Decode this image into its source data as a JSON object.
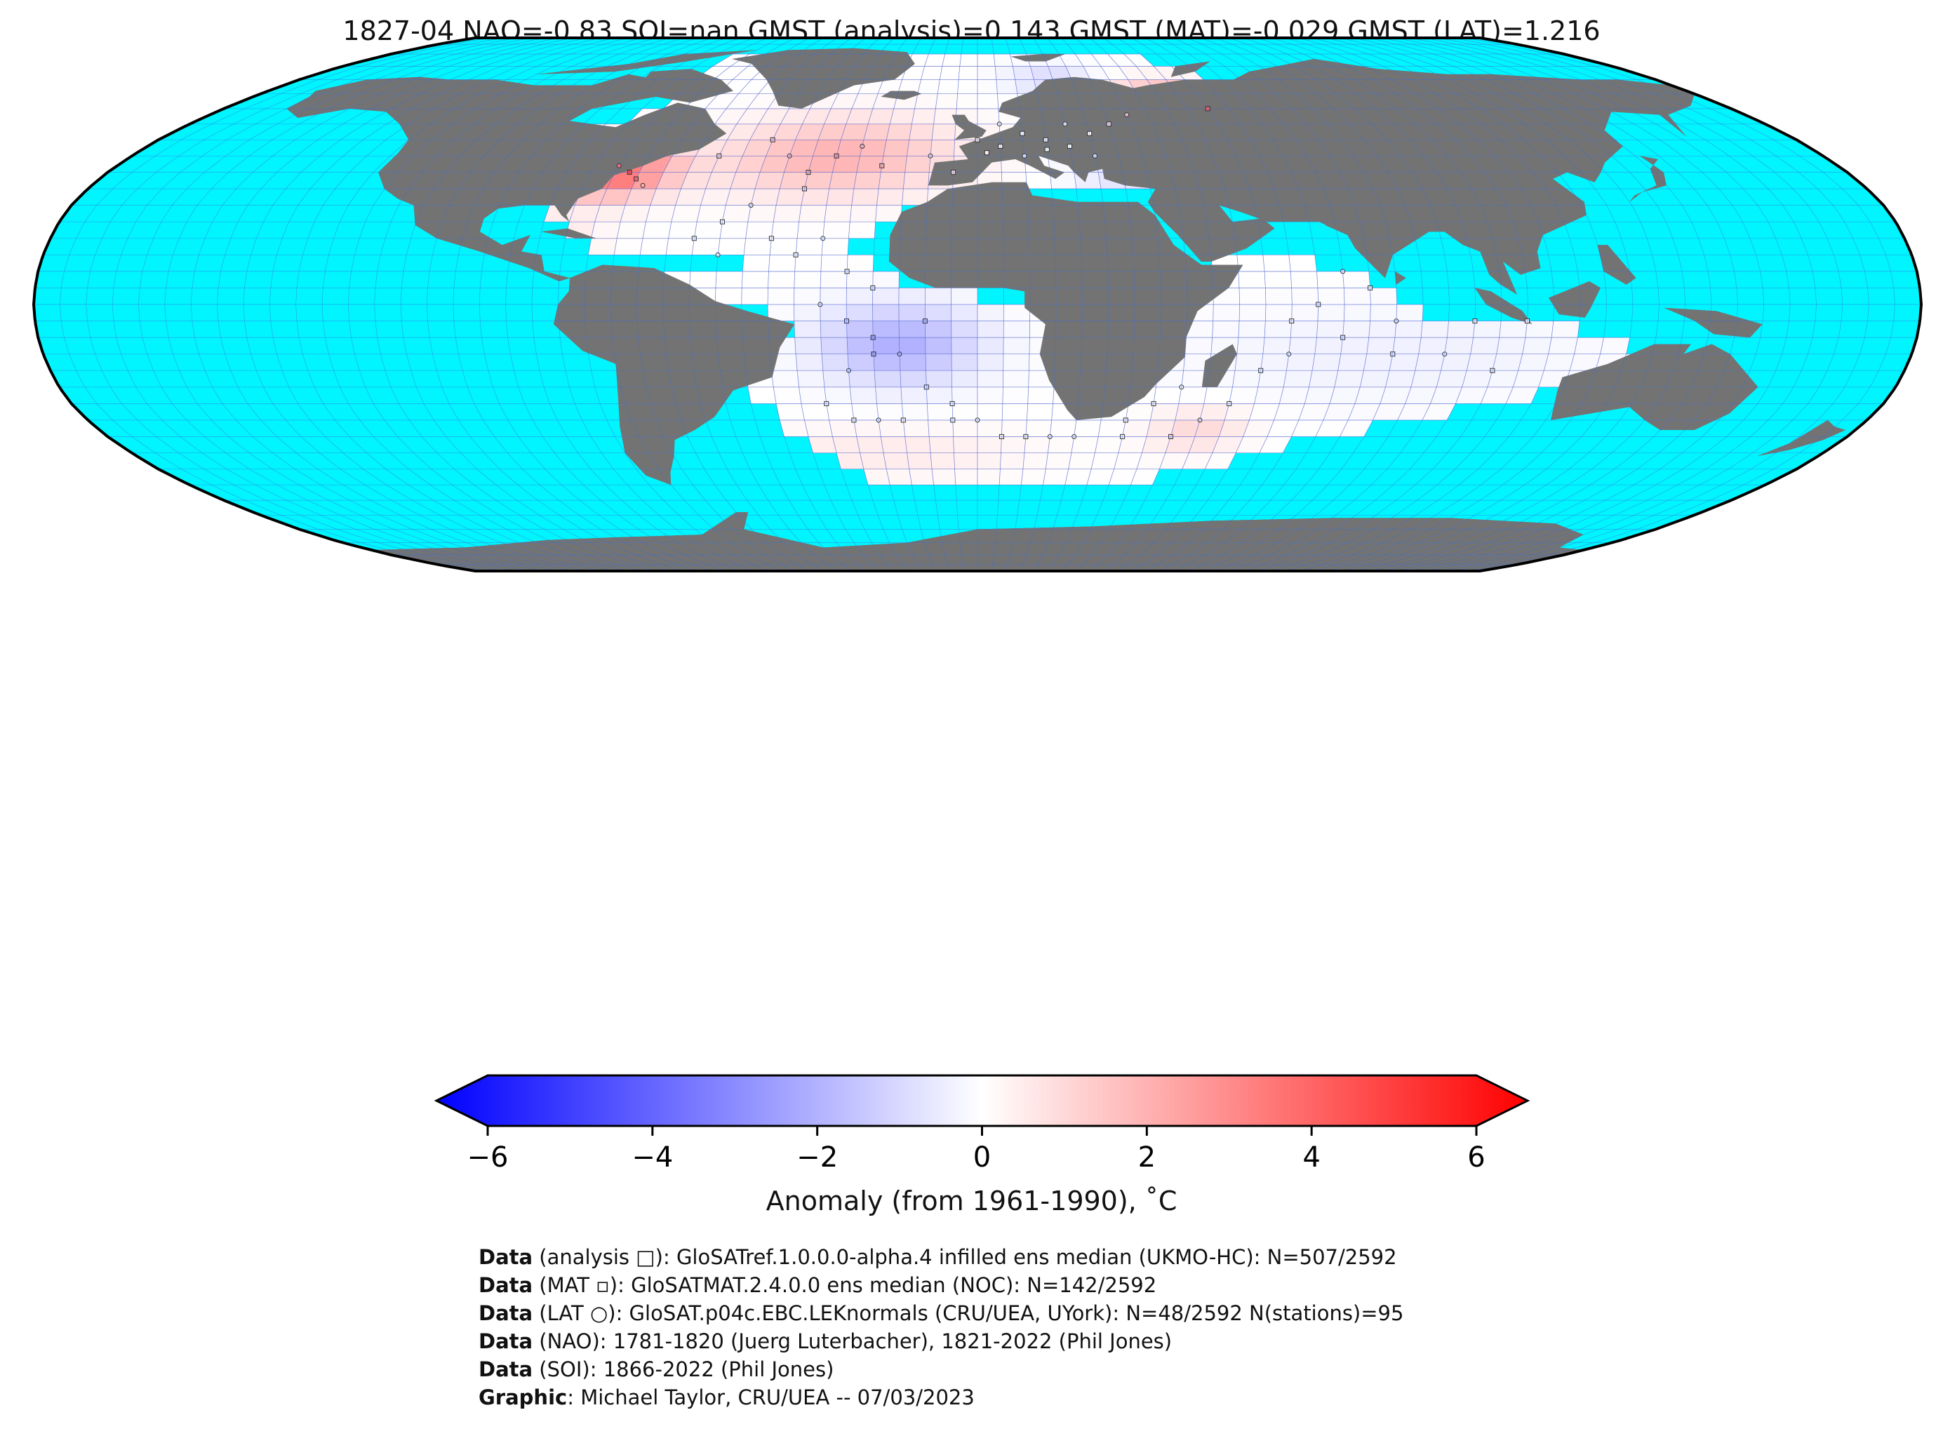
{
  "title": "1827-04 NAO=-0.83 SOI=nan GMST (analysis)=0.143 GMST (MAT)=-0.029 GMST (LAT)=1.216",
  "colorbar": {
    "label": "Anomaly (from 1961-1990), ˚C",
    "ticks": [
      "−6",
      "−4",
      "−2",
      "0",
      "2",
      "4",
      "6"
    ],
    "tick_values": [
      -6,
      -4,
      -2,
      0,
      2,
      4,
      6
    ],
    "range": [
      -6,
      6
    ],
    "colormap": [
      "#0000ff",
      "#ffffff",
      "#ff0000"
    ],
    "extend": "both"
  },
  "map": {
    "projection": "Robinson",
    "ocean_color": "#00f5ff",
    "land_color": "#737373",
    "grid_line_color": "#3a6fd8",
    "grid_cell_edge_color": "#9b59b6"
  },
  "credits": [
    {
      "bold": "Data",
      "text": " (analysis □): GloSATref.1.0.0.0-alpha.4 infilled ens median (UKMO-HC): N=507/2592"
    },
    {
      "bold": "Data",
      "text": " (MAT ▫): GloSATMAT.2.4.0.0 ens median (NOC): N=142/2592"
    },
    {
      "bold": "Data",
      "text": " (LAT ○): GloSAT.p04c.EBC.LEKnormals (CRU/UEA, UYork): N=48/2592 N(stations)=95"
    },
    {
      "bold": "Data",
      "text": " (NAO): 1781-1820 (Juerg Luterbacher), 1821-2022 (Phil Jones)"
    },
    {
      "bold": "Data",
      "text": " (SOI): 1866-2022 (Phil Jones)"
    },
    {
      "bold": "Graphic",
      "text": ": Michael Taylor, CRU/UEA -- 07/03/2023"
    }
  ]
}
